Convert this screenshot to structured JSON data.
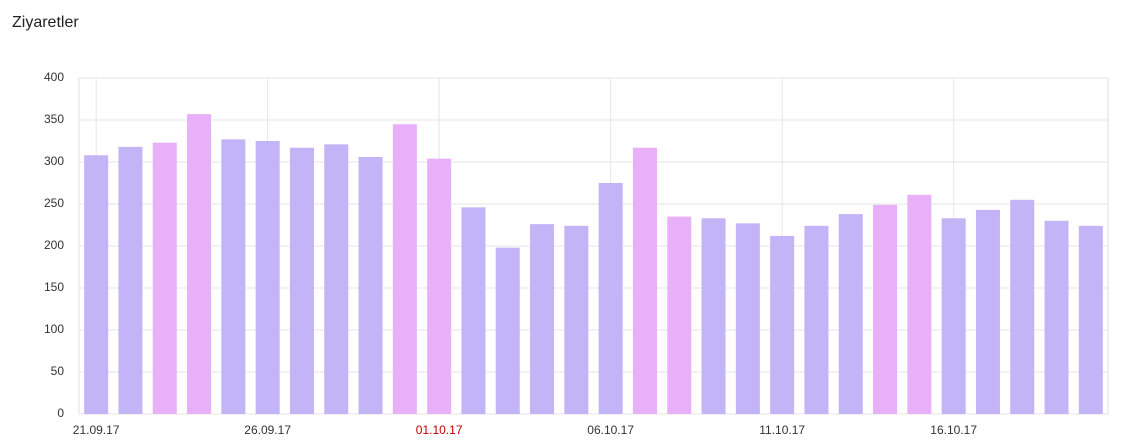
{
  "chart_data": {
    "type": "bar",
    "title": "Ziyaretler",
    "categories": [
      "21.09.17",
      null,
      null,
      null,
      null,
      "26.09.17",
      null,
      null,
      null,
      null,
      "01.10.17",
      null,
      null,
      null,
      null,
      "06.10.17",
      null,
      null,
      null,
      null,
      "11.10.17",
      null,
      null,
      null,
      null,
      "16.10.17",
      null,
      null,
      null,
      null
    ],
    "category_colors": [
      "#333333",
      null,
      null,
      null,
      null,
      "#333333",
      null,
      null,
      null,
      null,
      "#c00000",
      null,
      null,
      null,
      null,
      "#333333",
      null,
      null,
      null,
      null,
      "#333333",
      null,
      null,
      null,
      null,
      "#333333",
      null,
      null,
      null,
      null
    ],
    "values": [
      308,
      318,
      323,
      357,
      327,
      325,
      317,
      321,
      306,
      345,
      304,
      246,
      198,
      226,
      224,
      275,
      317,
      235,
      233,
      227,
      212,
      224,
      238,
      249,
      261,
      233,
      243,
      255,
      230,
      224
    ],
    "colors": [
      "#c3b3f7",
      "#c3b3f7",
      "#e8b0f8",
      "#e8b0f8",
      "#c3b3f7",
      "#c3b3f7",
      "#c3b3f7",
      "#c3b3f7",
      "#c3b3f7",
      "#e8b0f8",
      "#e8b0f8",
      "#c3b3f7",
      "#c3b3f7",
      "#c3b3f7",
      "#c3b3f7",
      "#c3b3f7",
      "#e8b0f8",
      "#e8b0f8",
      "#c3b3f7",
      "#c3b3f7",
      "#c3b3f7",
      "#c3b3f7",
      "#c3b3f7",
      "#e8b0f8",
      "#e8b0f8",
      "#c3b3f7",
      "#c3b3f7",
      "#c3b3f7",
      "#c3b3f7",
      "#c3b3f7"
    ],
    "ylim": [
      0,
      400
    ],
    "yticks": [
      0,
      50,
      100,
      150,
      200,
      250,
      300,
      350,
      400
    ],
    "grid": true
  }
}
